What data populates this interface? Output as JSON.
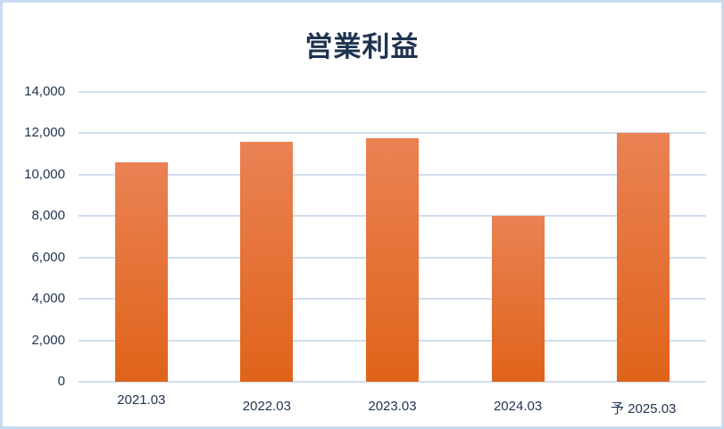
{
  "page": {
    "background": "#ffffff",
    "border_color": "#c9dbf1"
  },
  "chart_data": {
    "type": "bar",
    "title": "営業利益",
    "categories": [
      "2021.03",
      "2022.03",
      "2023.03",
      "2024.03",
      "予 2025.03"
    ],
    "values": [
      10600,
      11600,
      11750,
      8000,
      12000
    ],
    "xlabel": "",
    "ylabel": "",
    "ylim": [
      0,
      14000
    ],
    "ytick_interval": 2000,
    "yticks": [
      0,
      2000,
      4000,
      6000,
      8000,
      10000,
      12000,
      14000
    ],
    "ytick_labels": [
      "0",
      "2,000",
      "4,000",
      "6,000",
      "8,000",
      "10,000",
      "12,000",
      "14,000"
    ],
    "grid": true,
    "legend_position": "none",
    "gridline_color": "#cfdeef",
    "text_color": "#1f3350",
    "bar_gradient_top": "#ea8254",
    "bar_gradient_bottom": "#e0631a"
  }
}
